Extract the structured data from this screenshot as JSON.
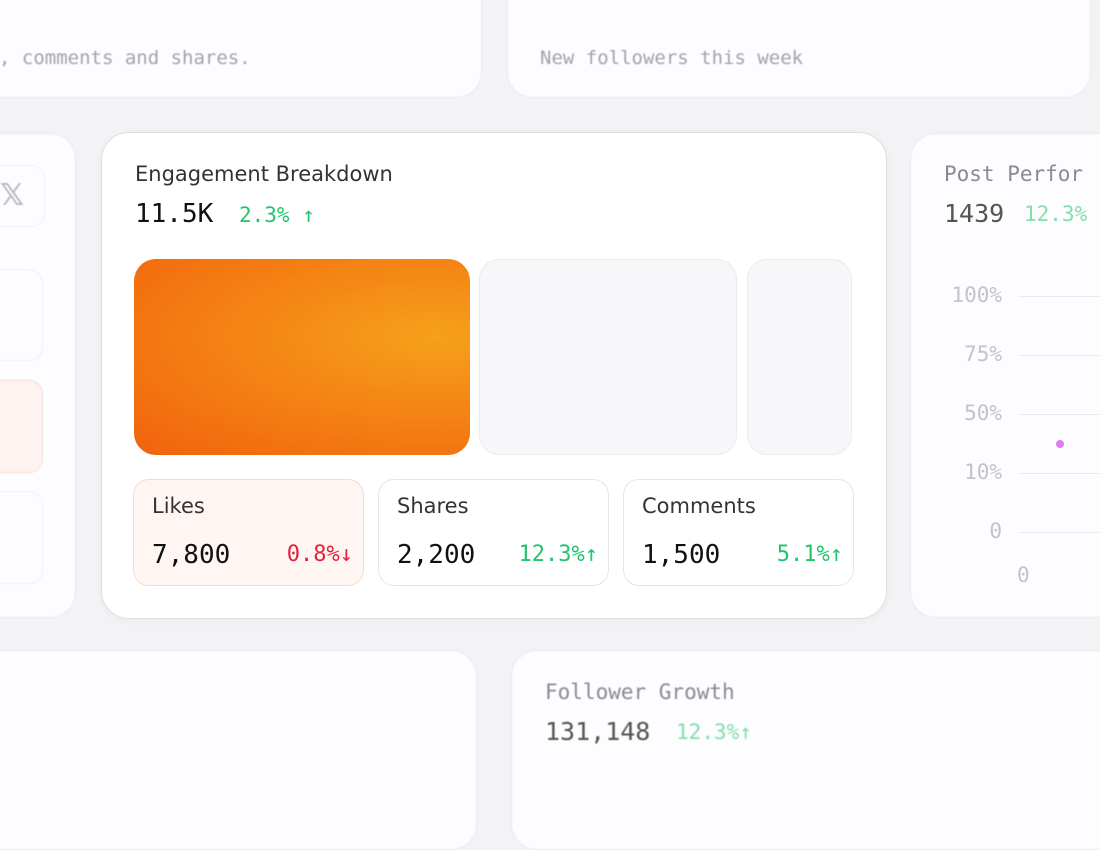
{
  "top_left_card": {
    "caption": ", comments and shares."
  },
  "top_right_card": {
    "caption": "New followers this week"
  },
  "left_card": {
    "x_icon": "x-logo-icon"
  },
  "engagement": {
    "title": "Engagement Breakdown",
    "total": "11.5K",
    "change": "2.3%",
    "change_dir": "up",
    "stats": [
      {
        "label": "Likes",
        "value": "7,800",
        "change": "0.8%",
        "arrow": "↓",
        "dir": "down"
      },
      {
        "label": "Shares",
        "value": "2,200",
        "change": "12.3%",
        "arrow": "↑",
        "dir": "up"
      },
      {
        "label": "Comments",
        "value": "1,500",
        "change": "5.1%",
        "arrow": "↑",
        "dir": "up"
      }
    ],
    "colors": {
      "accent_start": "#f2620c",
      "accent_end": "#f6a01c",
      "up": "#22c56e",
      "down": "#e5213a"
    }
  },
  "post_performance": {
    "title": "Post Perfor",
    "value": "1439",
    "change": "12.3%"
  },
  "follower_growth": {
    "title": "Follower Growth",
    "value": "131,148",
    "change": "12.3%",
    "arrow": "↑"
  },
  "chart_data": {
    "type": "scatter",
    "title": "Post Performance",
    "y_tick_labels": [
      "100%",
      "75%",
      "50%",
      "10%",
      "0"
    ],
    "x_tick_labels": [
      "0"
    ],
    "points": [
      {
        "x": 0.5,
        "y": 30
      }
    ],
    "point_color": "#e07cf0",
    "grid": true
  }
}
